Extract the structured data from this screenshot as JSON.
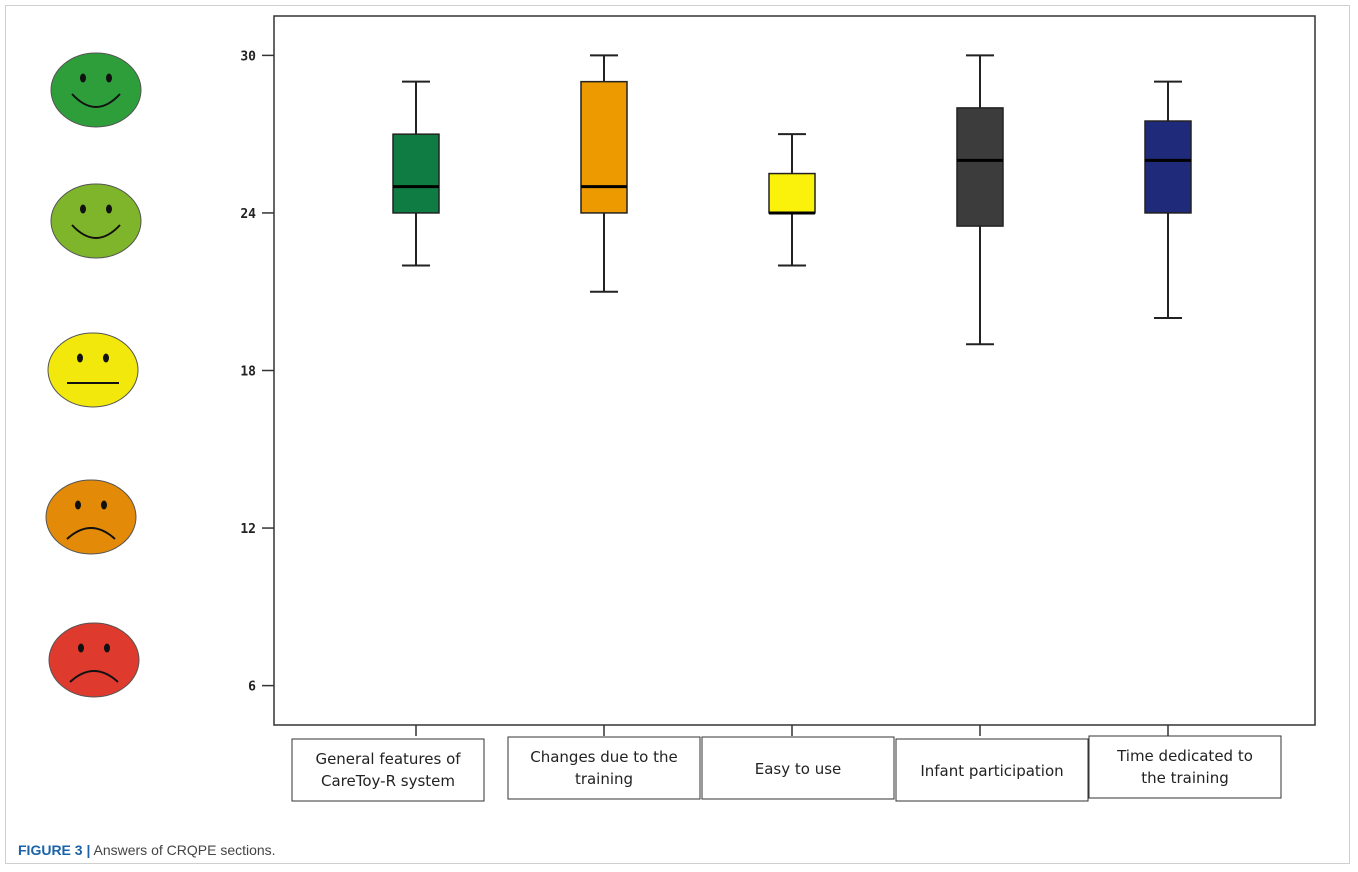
{
  "caption": {
    "label": "FIGURE 3 |",
    "text": "Answers of CRQPE sections."
  },
  "faces": [
    {
      "name": "very-happy",
      "color": "#2e9e3b",
      "mood": "smile"
    },
    {
      "name": "happy",
      "color": "#7fb52a",
      "mood": "smile"
    },
    {
      "name": "neutral",
      "color": "#f2e80c",
      "mood": "neutral"
    },
    {
      "name": "sad",
      "color": "#e38a08",
      "mood": "frown"
    },
    {
      "name": "very-sad",
      "color": "#de3a2e",
      "mood": "frown"
    }
  ],
  "chart_data": {
    "type": "box",
    "title": "",
    "xlabel": "",
    "ylabel": "",
    "ylim": [
      4.5,
      31.5
    ],
    "yticks": [
      6,
      12,
      18,
      24,
      30
    ],
    "grid": false,
    "categories": [
      [
        "General  features of",
        "CareToy-R system"
      ],
      [
        "Changes due to the",
        "training"
      ],
      [
        "Easy to use"
      ],
      [
        "Infant participation"
      ],
      [
        "Time dedicated to",
        "the training"
      ]
    ],
    "series": [
      {
        "min": 22,
        "q1": 24,
        "median": 25,
        "q3": 27,
        "max": 29,
        "color": "#0f7d43"
      },
      {
        "min": 21,
        "q1": 24,
        "median": 25,
        "q3": 29,
        "max": 30,
        "color": "#ec9a00"
      },
      {
        "min": 22,
        "q1": 24,
        "median": 24,
        "q3": 25.5,
        "max": 27,
        "color": "#fbf20c"
      },
      {
        "min": 19,
        "q1": 23.5,
        "median": 26,
        "q3": 28,
        "max": 30,
        "color": "#3c3c3c"
      },
      {
        "min": 20,
        "q1": 24,
        "median": 26,
        "q3": 27.5,
        "max": 29,
        "color": "#1f2a7a"
      }
    ]
  }
}
